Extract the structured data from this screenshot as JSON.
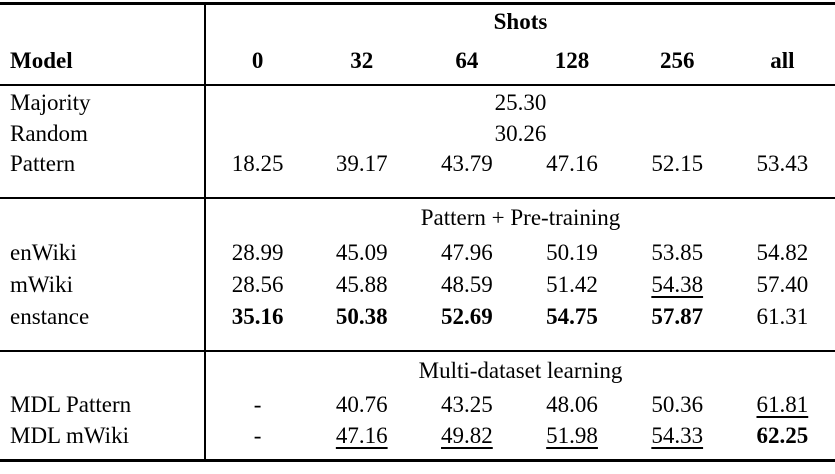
{
  "table": {
    "model_header": "Model",
    "shots_header": "Shots",
    "shot_columns": [
      "0",
      "32",
      "64",
      "128",
      "256",
      "all"
    ],
    "sections": [
      {
        "title": null,
        "rows": [
          {
            "model": "Majority",
            "span": "25.30"
          },
          {
            "model": "Random",
            "span": "30.26"
          },
          {
            "model": "Pattern",
            "cells": [
              {
                "t": "18.25"
              },
              {
                "t": "39.17"
              },
              {
                "t": "43.79"
              },
              {
                "t": "47.16"
              },
              {
                "t": "52.15"
              },
              {
                "t": "53.43"
              }
            ]
          }
        ]
      },
      {
        "title": "Pattern + Pre-training",
        "rows": [
          {
            "model": "enWiki",
            "cells": [
              {
                "t": "28.99"
              },
              {
                "t": "45.09"
              },
              {
                "t": "47.96"
              },
              {
                "t": "50.19"
              },
              {
                "t": "53.85"
              },
              {
                "t": "54.82"
              }
            ]
          },
          {
            "model": "mWiki",
            "cells": [
              {
                "t": "28.56"
              },
              {
                "t": "45.88"
              },
              {
                "t": "48.59"
              },
              {
                "t": "51.42"
              },
              {
                "t": "54.38",
                "u": true
              },
              {
                "t": "57.40"
              }
            ]
          },
          {
            "model": "enstance",
            "cells": [
              {
                "t": "35.16",
                "b": true
              },
              {
                "t": "50.38",
                "b": true
              },
              {
                "t": "52.69",
                "b": true
              },
              {
                "t": "54.75",
                "b": true
              },
              {
                "t": "57.87",
                "b": true
              },
              {
                "t": "61.31"
              }
            ]
          }
        ]
      },
      {
        "title": "Multi-dataset learning",
        "rows": [
          {
            "model": "MDL Pattern",
            "cells": [
              {
                "t": "-"
              },
              {
                "t": "40.76"
              },
              {
                "t": "43.25"
              },
              {
                "t": "48.06"
              },
              {
                "t": "50.36"
              },
              {
                "t": "61.81",
                "u": true
              }
            ]
          },
          {
            "model": "MDL mWiki",
            "cells": [
              {
                "t": "-"
              },
              {
                "t": "47.16",
                "u": true
              },
              {
                "t": "49.82",
                "u": true
              },
              {
                "t": "51.98",
                "u": true
              },
              {
                "t": "54.33",
                "u": true
              },
              {
                "t": "62.25",
                "b": true
              }
            ]
          }
        ]
      }
    ],
    "colors": {
      "text": "#000000",
      "background": "#ffffff",
      "rule": "#000000"
    }
  }
}
